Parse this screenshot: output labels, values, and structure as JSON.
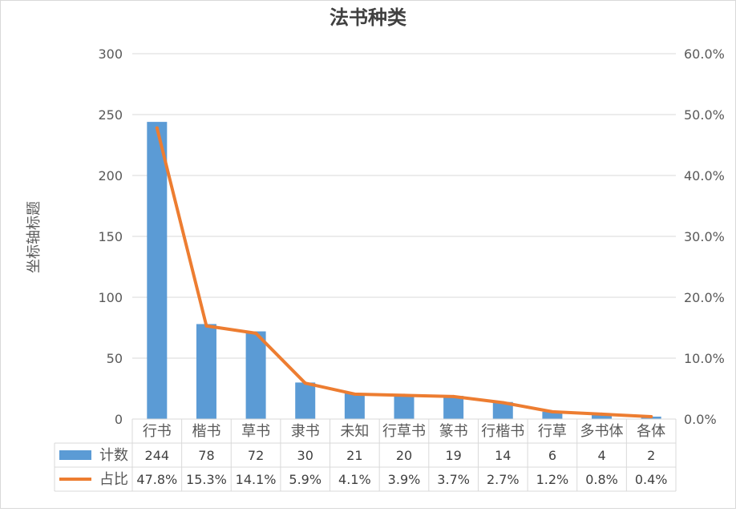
{
  "chart_data": {
    "type": "bar",
    "title": "法书种类",
    "ylabel": "坐标轴标题",
    "categories": [
      "行书",
      "楷书",
      "草书",
      "隶书",
      "未知",
      "行草书",
      "篆书",
      "行楷书",
      "行草",
      "多书体",
      "各体"
    ],
    "ylim": [
      0,
      300
    ],
    "y_ticks": [
      "0",
      "50",
      "100",
      "150",
      "200",
      "250",
      "300"
    ],
    "y_tick_values": [
      0,
      50,
      100,
      150,
      200,
      250,
      300
    ],
    "y2lim": [
      0,
      0.6
    ],
    "y2_ticks": [
      "0.0%",
      "10.0%",
      "20.0%",
      "30.0%",
      "40.0%",
      "50.0%",
      "60.0%"
    ],
    "y2_tick_values": [
      0,
      0.1,
      0.2,
      0.3,
      0.4,
      0.5,
      0.6
    ],
    "grid": true,
    "legend": "data-table",
    "series": [
      {
        "name": "计数",
        "type": "bar",
        "axis": "left",
        "color": "#5B9BD5",
        "values": [
          244,
          78,
          72,
          30,
          21,
          20,
          19,
          14,
          6,
          4,
          2
        ],
        "labels": [
          "244",
          "78",
          "72",
          "30",
          "21",
          "20",
          "19",
          "14",
          "6",
          "4",
          "2"
        ]
      },
      {
        "name": "占比",
        "type": "line",
        "axis": "right",
        "color": "#ED7D31",
        "values": [
          0.478,
          0.153,
          0.141,
          0.059,
          0.041,
          0.039,
          0.037,
          0.027,
          0.012,
          0.008,
          0.004
        ],
        "labels": [
          "47.8%",
          "15.3%",
          "14.1%",
          "5.9%",
          "4.1%",
          "3.9%",
          "3.7%",
          "2.7%",
          "1.2%",
          "0.8%",
          "0.4%"
        ]
      }
    ]
  }
}
